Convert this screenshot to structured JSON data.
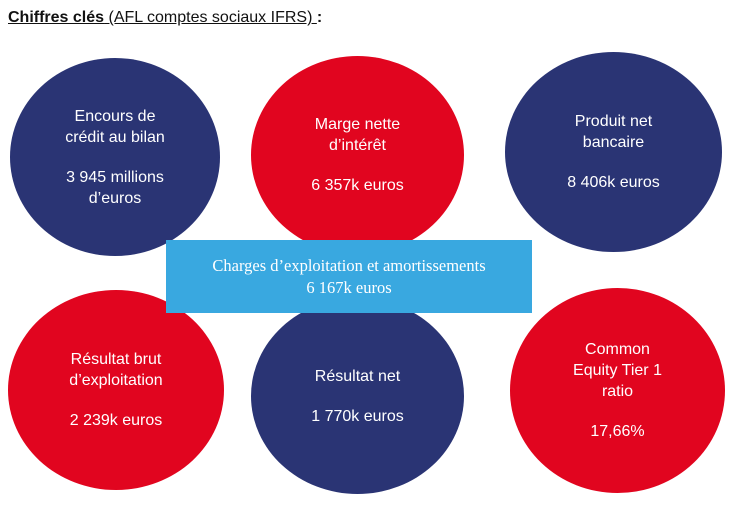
{
  "heading": {
    "part1": "Chiffres clés",
    "part2": " (AFL comptes sociaux IFRS) ",
    "colon": ":"
  },
  "colors": {
    "navy": "#2a3474",
    "red": "#e1051f",
    "banner": "#39a8e0"
  },
  "metrics": [
    {
      "label": "Encours de\ncrédit au bilan",
      "value": "3 945 millions\nd’euros",
      "color": "navy"
    },
    {
      "label": "Marge nette\nd’intérêt",
      "value": "6 357k euros",
      "color": "red"
    },
    {
      "label": "Produit net\nbancaire",
      "value": "8 406k euros",
      "color": "navy"
    },
    {
      "label": "Résultat brut\nd’exploitation",
      "value": "2 239k euros",
      "color": "red"
    },
    {
      "label": "Résultat net",
      "value": "1 770k euros",
      "color": "navy"
    },
    {
      "label": "Common\nEquity Tier 1\nratio",
      "value": "17,66%",
      "color": "red"
    }
  ],
  "banner": {
    "label": "Charges d’exploitation et amortissements",
    "value": "6 167k euros"
  }
}
